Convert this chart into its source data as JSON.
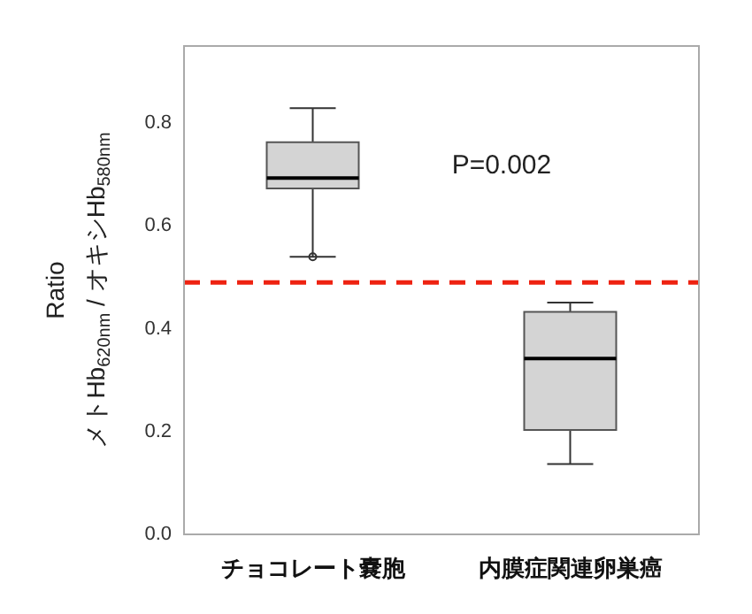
{
  "chart_data": {
    "type": "box",
    "ylabel": "Ratio\nメトHb$_{620nm}$ / オキシHb$_{580nm}$",
    "categories": [
      "チョコレート嚢胞",
      "内膜症関連卵巣癌"
    ],
    "boxes": [
      {
        "low": 0.54,
        "q1": 0.673,
        "median": 0.693,
        "q3": 0.763,
        "high": 0.829,
        "outliers": [
          0.54
        ]
      },
      {
        "low": 0.137,
        "q1": 0.203,
        "median": 0.342,
        "q3": 0.433,
        "high": 0.451
      }
    ],
    "color": "#d4d4d4",
    "ylim": [
      0,
      0.95
    ],
    "yticks": [
      {
        "value": 0,
        "label": "0.0"
      },
      {
        "value": 0.2,
        "label": "0.2"
      },
      {
        "value": 0.4,
        "label": "0.4"
      },
      {
        "value": 0.6,
        "label": "0.6"
      },
      {
        "value": 0.8,
        "label": "0.8"
      }
    ],
    "ref_lines": [
      {
        "axis": "y",
        "value": 0.49,
        "color": "#ee2211",
        "line_style": "dashed"
      }
    ],
    "annotations": [
      "P=0.002"
    ],
    "grid": false,
    "legend": false
  }
}
